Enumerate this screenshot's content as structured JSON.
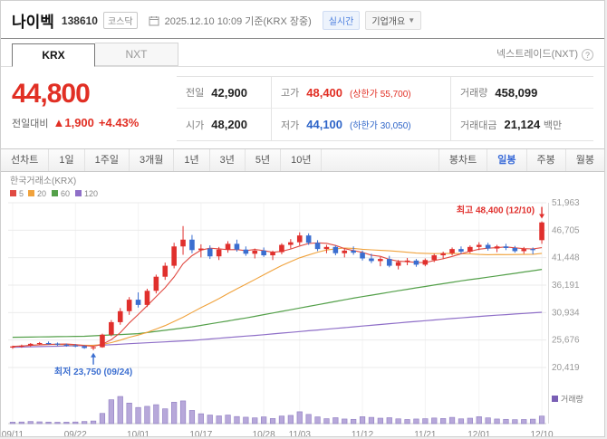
{
  "header": {
    "title": "나이벡",
    "code": "138610",
    "market_badge": "코스닥",
    "timestamp": "2025.12.10 10:09 기준(KRX 장중)",
    "realtime_badge": "실시간",
    "overview_badge": "기업개요"
  },
  "tabs": {
    "krx": "KRX",
    "nxt": "NXT",
    "nxt_info": "넥스트레이드(NXT)",
    "help": "?"
  },
  "price": {
    "current": "44,800",
    "change_label": "전일대비",
    "change_arrow": "▲",
    "change_value": "1,900",
    "change_percent": "+4.43%"
  },
  "summary": {
    "prev_label": "전일",
    "prev": "42,900",
    "high_label": "고가",
    "high": "48,400",
    "upper_limit": "(상한가 55,700)",
    "volume_label": "거래량",
    "volume": "458,099",
    "open_label": "시가",
    "open": "48,200",
    "low_label": "저가",
    "low": "44,100",
    "lower_limit": "(하한가 30,050)",
    "value_label": "거래대금",
    "value": "21,124",
    "value_unit": "백만"
  },
  "toolbar": {
    "left": [
      "선차트",
      "1일",
      "1주일",
      "3개월",
      "1년",
      "3년",
      "5년",
      "10년"
    ],
    "right": [
      "봉차트",
      "일봉",
      "주봉",
      "월봉"
    ],
    "active": "일봉"
  },
  "chart_data": {
    "type": "candlestick",
    "source_label": "한국거래소(KRX)",
    "volume_label": "거래량",
    "ylim": [
      20419,
      51963
    ],
    "y_ticks": [
      {
        "v": 20419,
        "label": "20,419"
      },
      {
        "v": 25676,
        "label": "25,676"
      },
      {
        "v": 30934,
        "label": "30,934"
      },
      {
        "v": 36191,
        "label": "36,191"
      },
      {
        "v": 41448,
        "label": "41,448"
      },
      {
        "v": 46705,
        "label": "46,705"
      },
      {
        "v": 51963,
        "label": "51,963"
      }
    ],
    "x_ticks": [
      {
        "i": 0,
        "label": "09/11"
      },
      {
        "i": 7,
        "label": "09/22"
      },
      {
        "i": 14,
        "label": "10/01"
      },
      {
        "i": 21,
        "label": "10/17"
      },
      {
        "i": 28,
        "label": "10/28"
      },
      {
        "i": 32,
        "label": "11/03"
      },
      {
        "i": 39,
        "label": "11/12"
      },
      {
        "i": 46,
        "label": "11/21"
      },
      {
        "i": 52,
        "label": "12/01"
      },
      {
        "i": 59,
        "label": "12/10"
      }
    ],
    "dates": [
      "09/11",
      "09/12",
      "09/15",
      "09/16",
      "09/17",
      "09/18",
      "09/19",
      "09/22",
      "09/23",
      "09/24",
      "09/25",
      "09/26",
      "09/29",
      "09/30",
      "10/01",
      "10/02",
      "10/10",
      "10/13",
      "10/14",
      "10/15",
      "10/16",
      "10/17",
      "10/20",
      "10/21",
      "10/22",
      "10/23",
      "10/24",
      "10/27",
      "10/28",
      "10/29",
      "10/30",
      "10/31",
      "11/03",
      "11/04",
      "11/05",
      "11/06",
      "11/07",
      "11/10",
      "11/11",
      "11/12",
      "11/13",
      "11/14",
      "11/17",
      "11/18",
      "11/19",
      "11/20",
      "11/21",
      "11/24",
      "11/25",
      "11/26",
      "11/27",
      "11/28",
      "12/01",
      "12/02",
      "12/03",
      "12/04",
      "12/05",
      "12/08",
      "12/09",
      "12/10"
    ],
    "open": [
      24300,
      24450,
      24600,
      24950,
      25100,
      25000,
      24800,
      24650,
      24500,
      24150,
      24300,
      26700,
      29100,
      31200,
      33400,
      32400,
      35100,
      37800,
      39900,
      43600,
      44900,
      42900,
      43200,
      41700,
      43000,
      44100,
      43000,
      42200,
      42800,
      41900,
      42500,
      43900,
      44400,
      45700,
      44300,
      43100,
      43500,
      42300,
      42800,
      42400,
      41300,
      40800,
      41200,
      39900,
      40600,
      40900,
      40100,
      41000,
      41900,
      42300,
      43100,
      42600,
      43500,
      43900,
      43200,
      43600,
      43300,
      42700,
      43100,
      48200
    ],
    "high": [
      24600,
      24800,
      25100,
      25300,
      25400,
      25200,
      25000,
      24900,
      24700,
      24400,
      26900,
      29500,
      31800,
      33900,
      34800,
      35500,
      38200,
      40500,
      44300,
      47500,
      45800,
      44000,
      43800,
      43500,
      44600,
      44900,
      43600,
      43200,
      43400,
      42800,
      44200,
      45000,
      46300,
      46100,
      44800,
      43900,
      43800,
      43200,
      43600,
      42800,
      42200,
      41600,
      41800,
      41000,
      41400,
      41200,
      41300,
      42200,
      42600,
      43400,
      43600,
      43800,
      44400,
      44300,
      43900,
      44100,
      43700,
      43500,
      43400,
      48400
    ],
    "low": [
      24000,
      24200,
      24400,
      24700,
      24800,
      24600,
      24400,
      24300,
      24000,
      23750,
      24200,
      26400,
      28600,
      30500,
      31900,
      32000,
      34600,
      37200,
      39400,
      42000,
      42300,
      41500,
      41200,
      41000,
      42400,
      42600,
      41800,
      41300,
      41600,
      41000,
      42100,
      43200,
      43800,
      43900,
      42700,
      42300,
      41900,
      41500,
      42000,
      40900,
      40400,
      39800,
      39600,
      39200,
      40000,
      39700,
      39800,
      40600,
      41200,
      41900,
      42200,
      42300,
      42900,
      42800,
      42500,
      42900,
      42400,
      42200,
      42100,
      44100
    ],
    "close": [
      24450,
      24600,
      24950,
      25100,
      25000,
      24800,
      24650,
      24500,
      24150,
      24300,
      26700,
      29100,
      31200,
      33400,
      32400,
      35100,
      37800,
      39900,
      43600,
      44900,
      42900,
      43200,
      41700,
      43000,
      44100,
      43000,
      42200,
      42800,
      41900,
      42500,
      43900,
      44400,
      45700,
      44300,
      43100,
      43500,
      42300,
      42800,
      42400,
      41300,
      40800,
      41200,
      39900,
      40600,
      40900,
      40100,
      41000,
      41900,
      42300,
      43100,
      42600,
      43500,
      43900,
      43200,
      43600,
      43300,
      42700,
      43100,
      42900,
      44800
    ],
    "volume": [
      90000,
      100000,
      130000,
      110000,
      95000,
      85000,
      90000,
      100000,
      130000,
      160000,
      620000,
      1450000,
      1650000,
      1250000,
      980000,
      1050000,
      1150000,
      900000,
      1300000,
      1380000,
      800000,
      600000,
      520000,
      470000,
      520000,
      430000,
      390000,
      350000,
      410000,
      310000,
      460000,
      500000,
      720000,
      560000,
      410000,
      300000,
      360000,
      280000,
      260000,
      420000,
      380000,
      330000,
      360000,
      290000,
      250000,
      280000,
      300000,
      340000,
      310000,
      380000,
      290000,
      330000,
      420000,
      350000,
      280000,
      260000,
      240000,
      250000,
      270000,
      458099
    ],
    "ma_legend": [
      {
        "label": "5",
        "color": "#e04a42"
      },
      {
        "label": "20",
        "color": "#f0a23c"
      },
      {
        "label": "60",
        "color": "#54a04a"
      },
      {
        "label": "120",
        "color": "#8f6fc8"
      }
    ],
    "ma_windows": {
      "ma5": 5,
      "ma20": 20
    },
    "overlays": [
      {
        "name": "60",
        "color": "#54a04a",
        "points": [
          [
            0,
            26200
          ],
          [
            8,
            26400
          ],
          [
            14,
            26900
          ],
          [
            20,
            28200
          ],
          [
            26,
            29900
          ],
          [
            32,
            31800
          ],
          [
            38,
            33700
          ],
          [
            44,
            35400
          ],
          [
            50,
            37000
          ],
          [
            55,
            38200
          ],
          [
            59,
            39200
          ]
        ]
      },
      {
        "name": "120",
        "color": "#8f6fc8",
        "points": [
          [
            0,
            24300
          ],
          [
            10,
            24700
          ],
          [
            20,
            25600
          ],
          [
            28,
            26700
          ],
          [
            36,
            27900
          ],
          [
            44,
            29100
          ],
          [
            52,
            30200
          ],
          [
            59,
            31000
          ]
        ]
      }
    ],
    "annotations": [
      {
        "type": "high",
        "index": 59,
        "value": 48400,
        "label": "최고 48,400 (12/10)"
      },
      {
        "type": "low",
        "index": 9,
        "value": 23750,
        "label": "최저 23,750 (09/24)"
      }
    ],
    "colors": {
      "up": "#e0302d",
      "down": "#3b6ed0",
      "ma5": "#e04a42",
      "ma20": "#f0a23c",
      "volume_fill": "#b7a8da",
      "volume_stroke": "#8d7bc0",
      "volume_legend": "#7a5fb5",
      "grid": "#ebebeb",
      "axis_text": "#999"
    }
  }
}
